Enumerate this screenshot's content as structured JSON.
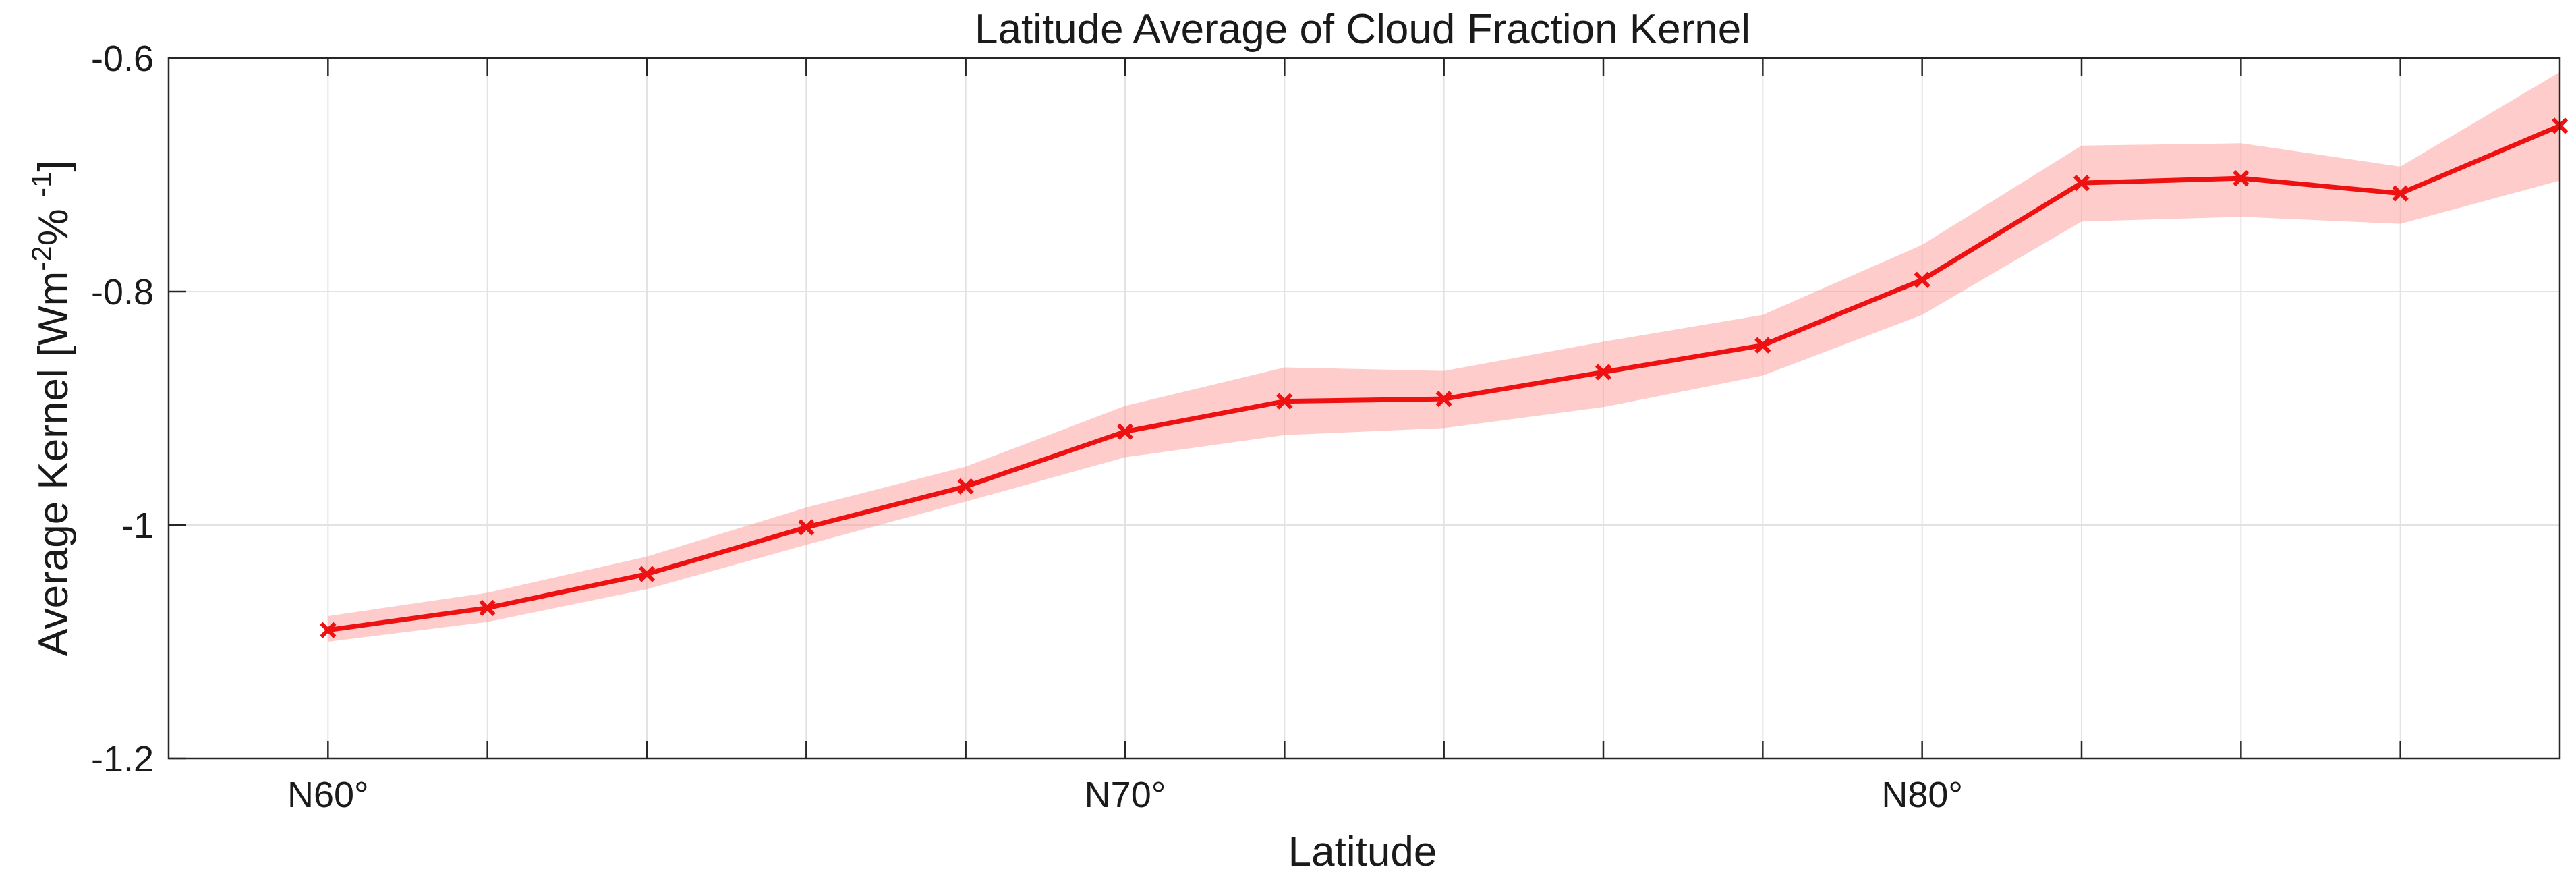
{
  "chart_data": {
    "type": "line",
    "title": "Latitude Average of Cloud Fraction Kernel",
    "xlabel": "Latitude",
    "ylabel": {
      "base": "Average Kernel [Wm",
      "sup1": "-2",
      "mid": "% ",
      "sup2": "-1",
      "end": "]"
    },
    "xlim": [
      58,
      88
    ],
    "ylim": [
      -1.2,
      -0.6
    ],
    "xticks": [
      {
        "value": 60,
        "label": "N60°"
      },
      {
        "value": 70,
        "label": "N70°"
      },
      {
        "value": 80,
        "label": "N80°"
      }
    ],
    "minor_x_grid": [
      60,
      62,
      64,
      66,
      68,
      70,
      72,
      74,
      76,
      78,
      80,
      82,
      84,
      86
    ],
    "yticks": [
      {
        "value": -0.6,
        "label": "-0.6"
      },
      {
        "value": -0.8,
        "label": "-0.8"
      },
      {
        "value": -1.0,
        "label": "-1"
      },
      {
        "value": -1.2,
        "label": "-1.2"
      }
    ],
    "grid": true,
    "series": [
      {
        "color": "#ee1111",
        "band_color": "#ff9999",
        "marker": "x",
        "x": [
          60,
          62,
          64,
          66,
          68,
          70,
          72,
          74,
          76,
          78,
          80,
          82,
          84,
          86,
          88
        ],
        "y": [
          -1.09,
          -1.071,
          -1.042,
          -1.002,
          -0.967,
          -0.92,
          -0.894,
          -0.892,
          -0.869,
          -0.846,
          -0.79,
          -0.707,
          -0.703,
          -0.716,
          -0.658
        ],
        "upper": [
          -1.078,
          -1.058,
          -1.027,
          -0.985,
          -0.95,
          -0.898,
          -0.865,
          -0.868,
          -0.843,
          -0.82,
          -0.76,
          -0.675,
          -0.673,
          -0.693,
          -0.612
        ],
        "lower": [
          -1.1,
          -1.083,
          -1.055,
          -1.017,
          -0.98,
          -0.942,
          -0.923,
          -0.917,
          -0.899,
          -0.872,
          -0.82,
          -0.74,
          -0.736,
          -0.742,
          -0.705
        ]
      }
    ]
  }
}
